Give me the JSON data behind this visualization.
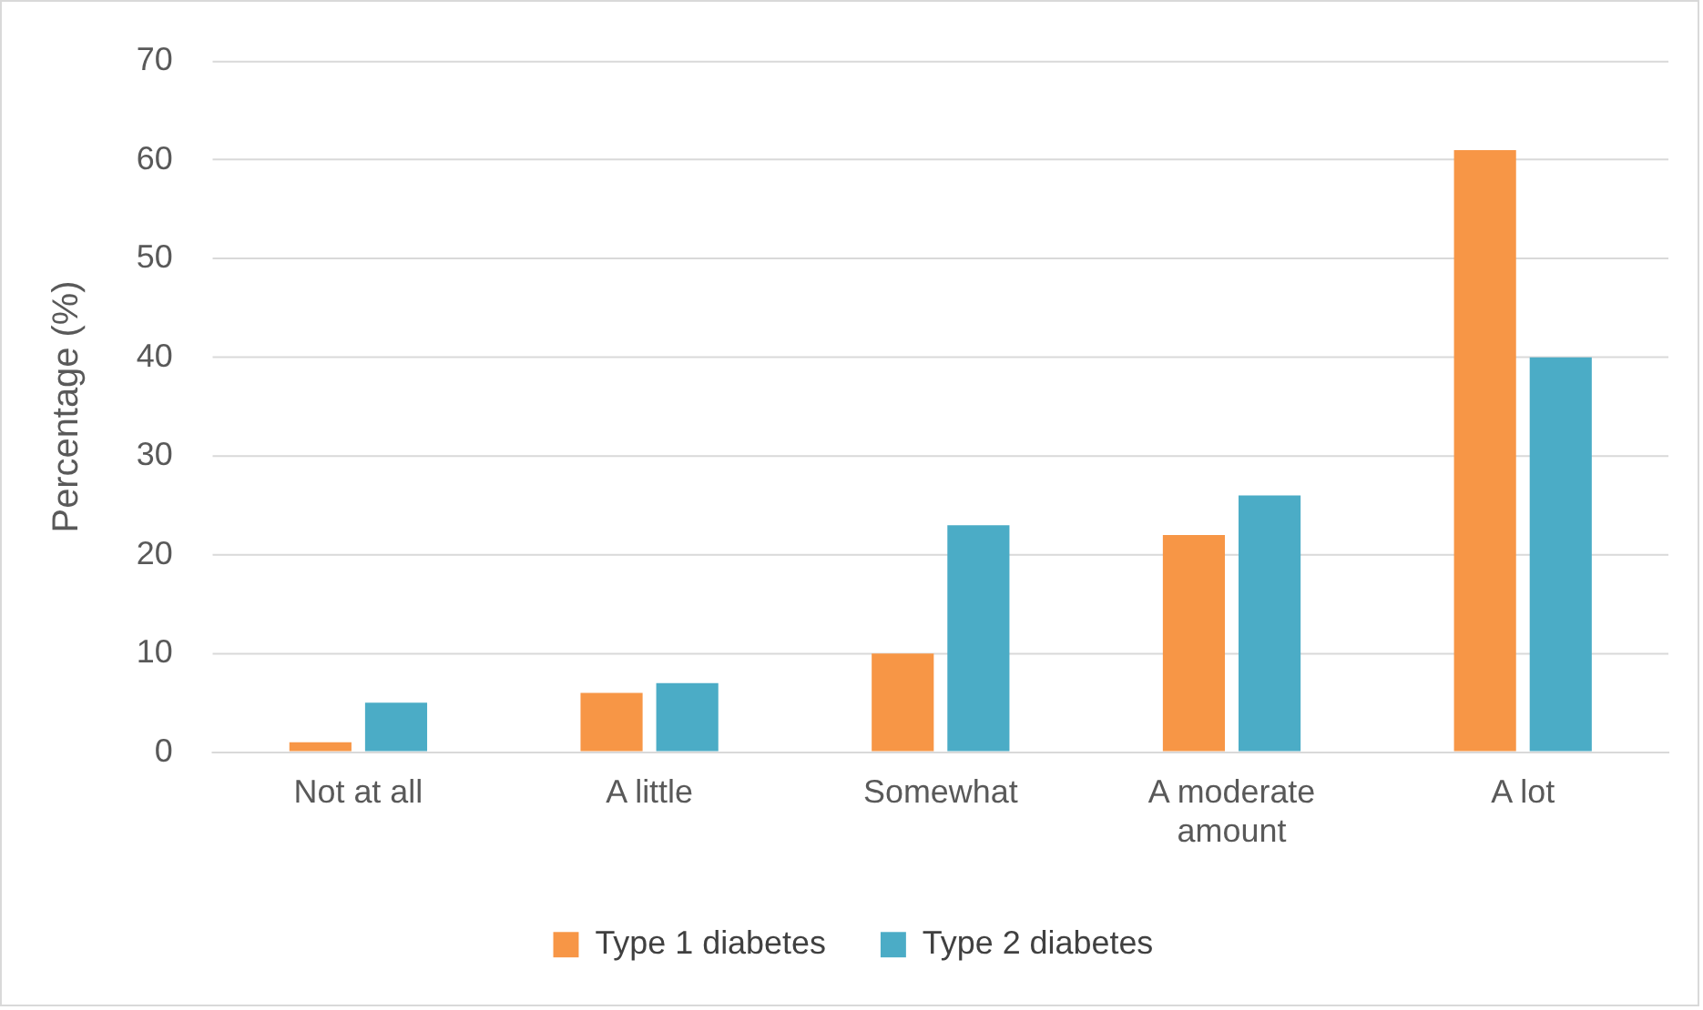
{
  "chart_data": {
    "type": "bar",
    "ylabel": "Percentage (%)",
    "categories": [
      "Not at all",
      "A little",
      "Somewhat",
      "A moderate amount",
      "A lot"
    ],
    "series": [
      {
        "name": "Type 1 diabetes",
        "color": "#f79646",
        "values": [
          1,
          6,
          10,
          22,
          61
        ]
      },
      {
        "name": "Type 2 diabetes",
        "color": "#4bacc6",
        "values": [
          5,
          7,
          23,
          26,
          40
        ]
      }
    ],
    "ylim": [
      0,
      70
    ],
    "yticks": [
      0,
      10,
      20,
      30,
      40,
      50,
      60,
      70
    ],
    "grid": "y",
    "legend": "bottom"
  }
}
